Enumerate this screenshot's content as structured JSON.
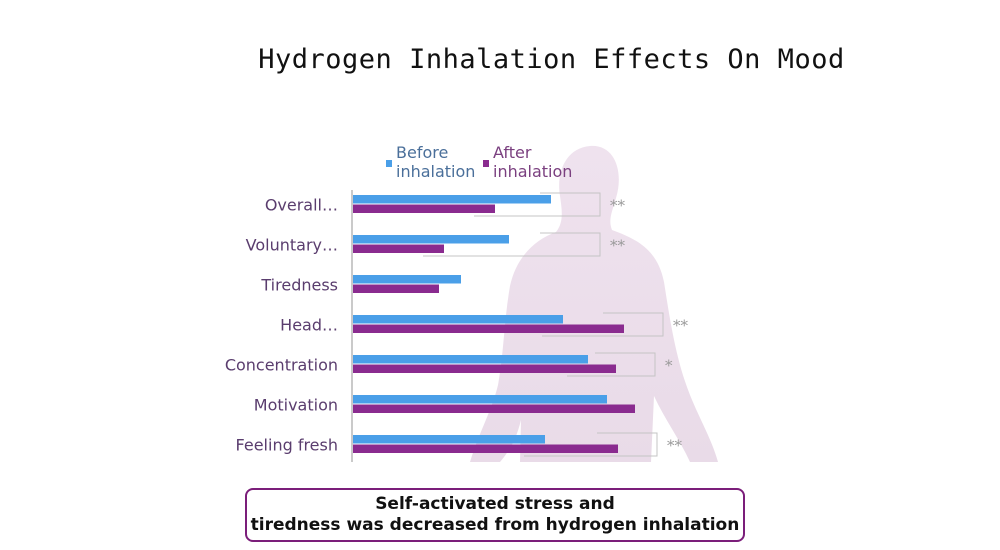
{
  "chart_data": {
    "type": "bar",
    "orientation": "horizontal",
    "title": "Hydrogen Inhalation Effects On Mood",
    "categories": [
      "Overall…",
      "Voluntary…",
      "Tiredness",
      "Head…",
      "Concentration",
      "Motivation",
      "Feeling fresh"
    ],
    "series": [
      {
        "name": "Before\ninhalation",
        "color": "#4a9fe8",
        "values": [
          198,
          156,
          108,
          210,
          235,
          254,
          192
        ]
      },
      {
        "name": "After\ninhalation",
        "color": "#8a2b8f",
        "values": [
          142,
          91,
          86,
          271,
          263,
          282,
          265
        ]
      }
    ],
    "significance": [
      "**",
      "**",
      "",
      "**",
      "*",
      "",
      "**"
    ],
    "xlim": [
      0,
      330
    ],
    "grid": false,
    "legend_position": "top"
  },
  "caption": {
    "line1": "Self-activated stress and",
    "line2": "tiredness was decreased from hydrogen inhalation"
  }
}
